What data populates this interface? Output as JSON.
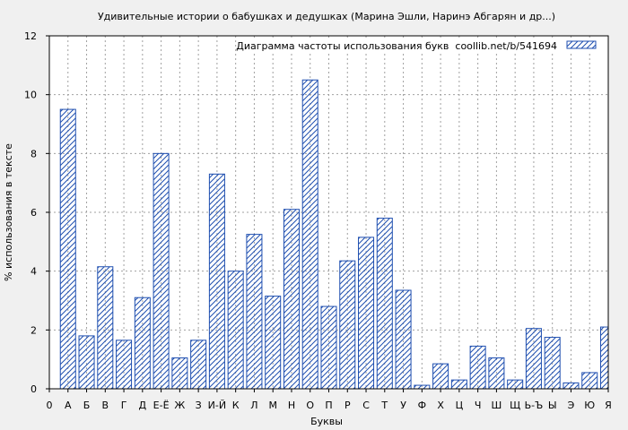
{
  "chart_data": {
    "type": "bar",
    "title": "Удивительные истории о бабушках и дедушках (Марина Эшли, Наринэ Абгарян и др...)",
    "xlabel": "Буквы",
    "ylabel": "% использования в тексте",
    "legend_text": "Диаграмма частоты использования букв  coollib.net/b/541694",
    "legend_position": "top-right",
    "grid": true,
    "ylim": [
      0,
      12
    ],
    "yticks": [
      0,
      2,
      4,
      6,
      8,
      10,
      12
    ],
    "x_tick_labels": [
      "0",
      "А",
      "Б",
      "В",
      "Г",
      "Д",
      "Е-Ё",
      "Ж",
      "З",
      "И-Й",
      "К",
      "Л",
      "М",
      "Н",
      "О",
      "П",
      "Р",
      "С",
      "Т",
      "У",
      "Ф",
      "Х",
      "Ц",
      "Ч",
      "Ш",
      "Щ",
      "Ь-Ъ",
      "Ы",
      "Э",
      "Ю",
      "Я"
    ],
    "categories": [
      "А",
      "Б",
      "В",
      "Г",
      "Д",
      "Е-Ё",
      "Ж",
      "З",
      "И-Й",
      "К",
      "Л",
      "М",
      "Н",
      "О",
      "П",
      "Р",
      "С",
      "Т",
      "У",
      "Ф",
      "Х",
      "Ц",
      "Ч",
      "Ш",
      "Щ",
      "Ь-Ъ",
      "Ы",
      "Э",
      "Ю",
      "Я"
    ],
    "values": [
      9.5,
      1.8,
      4.15,
      1.65,
      3.1,
      8.0,
      1.05,
      1.65,
      7.3,
      4.0,
      5.25,
      3.15,
      6.1,
      10.5,
      2.8,
      4.35,
      5.15,
      5.8,
      3.35,
      0.12,
      0.85,
      0.3,
      1.45,
      1.05,
      0.3,
      2.05,
      1.75,
      0.2,
      0.55,
      2.1
    ],
    "colors": {
      "bar_stroke": "#1f4fb0",
      "hatch": "#1f4fb0",
      "background": "#f0f0f0",
      "plot_bg": "#ffffff",
      "grid": "#a0a0a0"
    }
  }
}
